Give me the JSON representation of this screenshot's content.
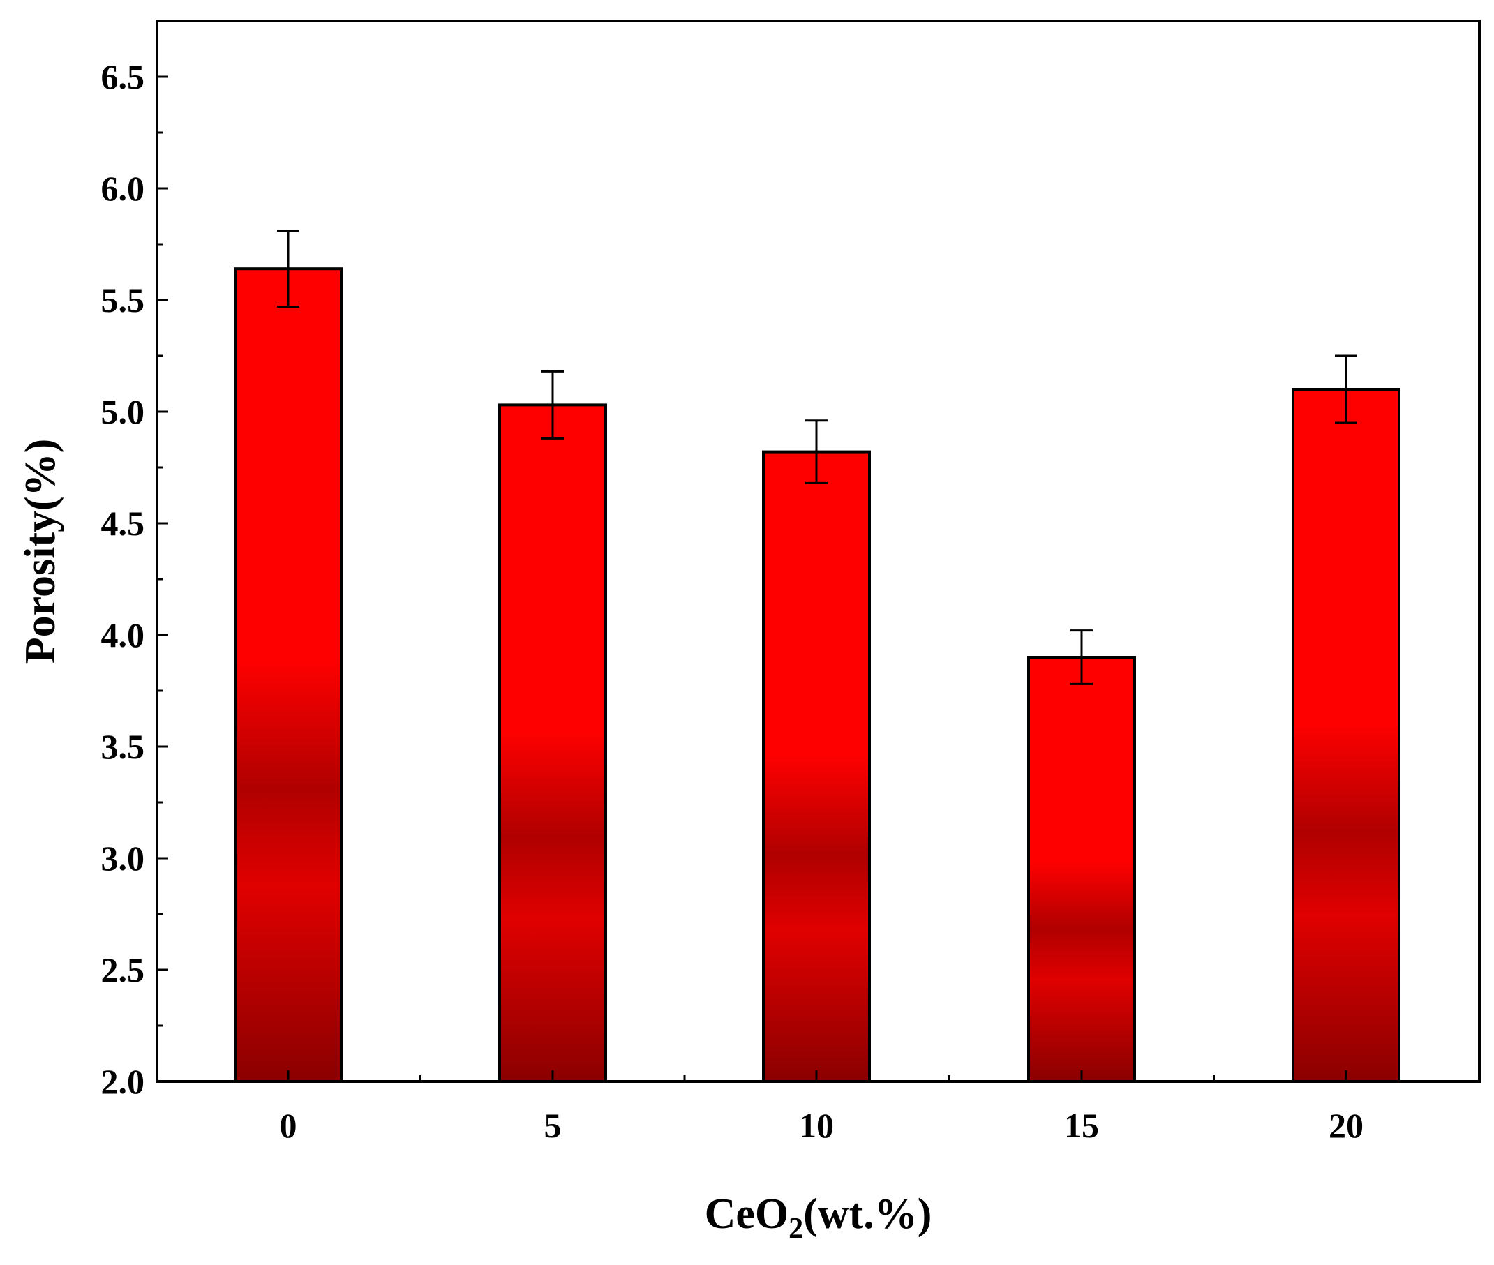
{
  "chart_data": {
    "type": "bar",
    "categories": [
      "0",
      "5",
      "10",
      "15",
      "20"
    ],
    "values": [
      5.64,
      5.03,
      4.82,
      3.9,
      5.1
    ],
    "errors": [
      0.17,
      0.15,
      0.14,
      0.12,
      0.15
    ],
    "ylim": [
      2.0,
      6.75
    ],
    "yticks": [
      "2.0",
      "2.5",
      "3.0",
      "3.5",
      "4.0",
      "4.5",
      "5.0",
      "5.5",
      "6.0",
      "6.5"
    ],
    "ylabel": "Porosity(%)",
    "xlabel": {
      "main": "CeO",
      "subscript": "2",
      "rest": "(wt.%)"
    },
    "bar_color_light": "#ff0000",
    "bar_color_dark": "#8b0000",
    "grid": false,
    "legend": false
  }
}
